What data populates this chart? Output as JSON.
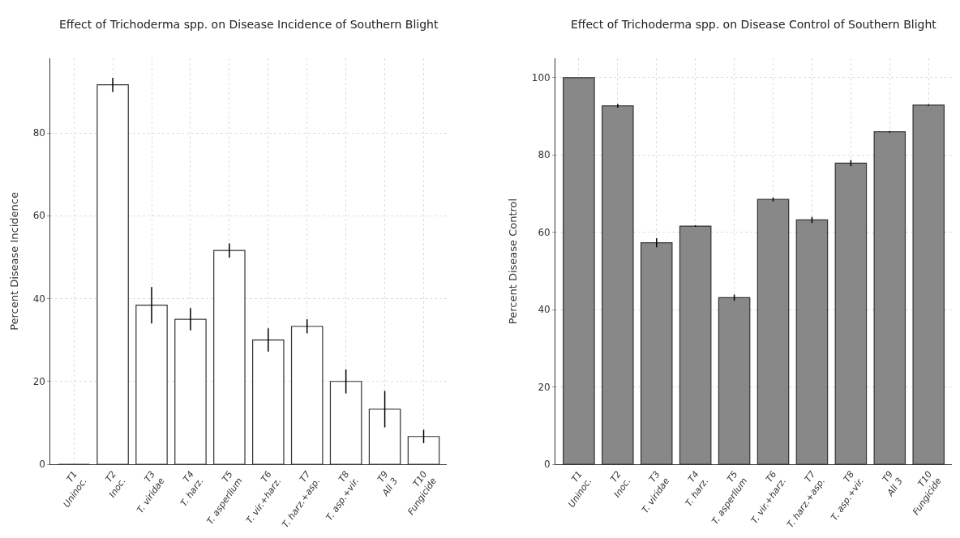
{
  "chart_data": [
    {
      "type": "bar",
      "title": "Effect of Trichoderma spp. on Disease Incidence of Southern Blight",
      "ylabel": "Percent Disease Incidence",
      "categories": [
        "T1\nUninoc.",
        "T2\nInoc.",
        "T3\nT. viridae",
        "T4\nT. harz.",
        "T5\nT. asperllum",
        "T6\nT. vir.+harz.",
        "T7\nT. harz.+asp.",
        "T8\nT. asp.+vir.",
        "T9\nAll 3",
        "T10\nFungicide"
      ],
      "series": [
        {
          "color": "#ffffff",
          "values": [
            0,
            91.6,
            38.4,
            35,
            51.6,
            30,
            33.3,
            20,
            13.3,
            6.7
          ],
          "errors": [
            null,
            1.7,
            4.4,
            2.7,
            1.7,
            2.8,
            1.7,
            2.9,
            4.4,
            1.6
          ]
        }
      ],
      "ylim": [
        0,
        98
      ],
      "yticks": [
        0,
        20,
        40,
        60,
        80
      ],
      "grid": true
    },
    {
      "type": "bar",
      "title": "Effect of Trichoderma spp. on Disease Control of Southern Blight",
      "ylabel": "Percent Disease Control",
      "categories": [
        "T1\nUninoc.",
        "T2\nInoc.",
        "T3\nT. viridae",
        "T4\nT. harz.",
        "T5\nT. asperllum",
        "T6\nT. vir.+harz.",
        "T7\nT. harz.+asp.",
        "T8\nT. asp.+vir.",
        "T9\nAll 3",
        "T10\nFungicide"
      ],
      "series": [
        {
          "color": "#888888",
          "values": [
            100,
            92.7,
            57.3,
            61.6,
            43.1,
            68.5,
            63.2,
            77.9,
            86,
            92.9
          ],
          "errors": [
            null,
            0.5,
            1.2,
            0.2,
            0.8,
            0.5,
            0.8,
            0.8,
            0.2,
            0.2
          ]
        }
      ],
      "ylim": [
        0,
        105
      ],
      "yticks": [
        0,
        20,
        40,
        60,
        80,
        100
      ],
      "grid": true
    }
  ]
}
